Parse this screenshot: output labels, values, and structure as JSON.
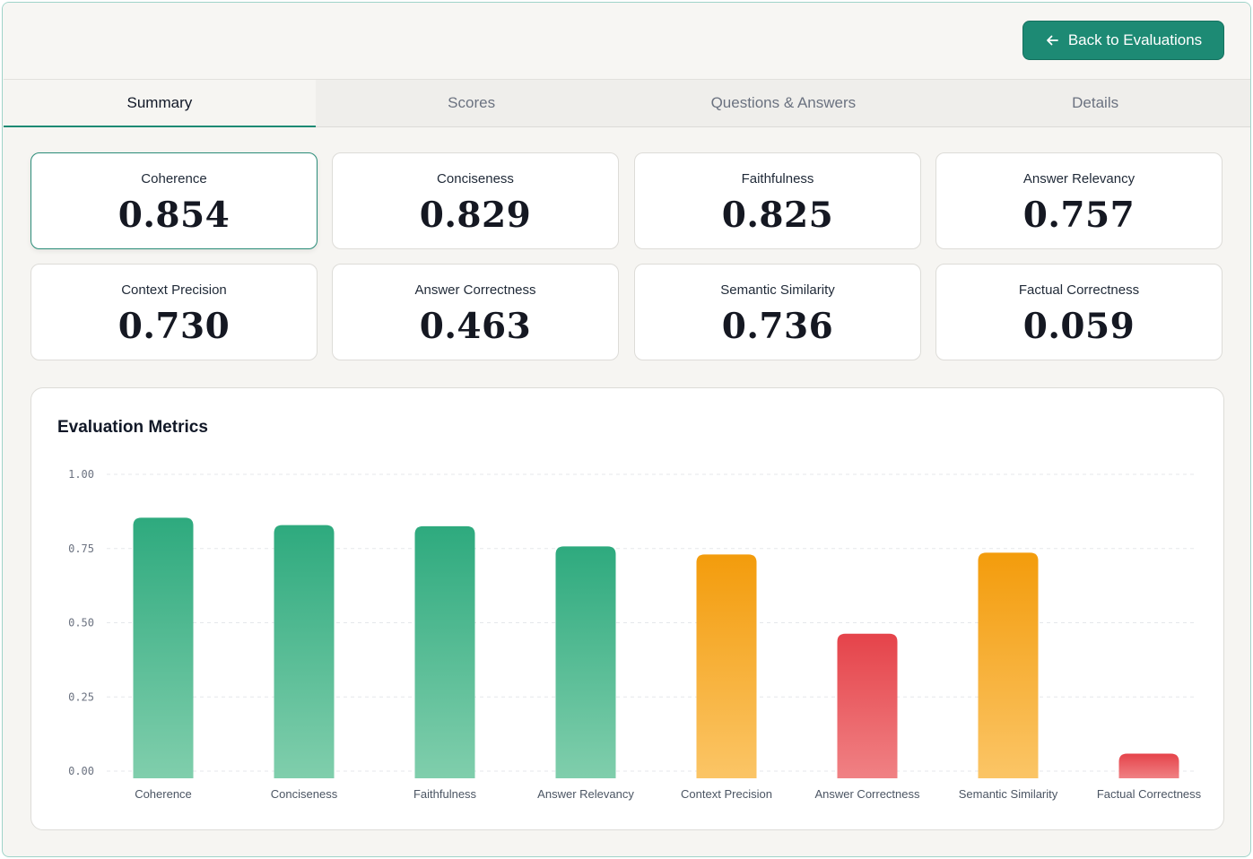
{
  "header": {
    "back_label": "Back to Evaluations",
    "back_icon": "arrow-left-icon"
  },
  "tabs": [
    {
      "label": "Summary",
      "active": true
    },
    {
      "label": "Scores",
      "active": false
    },
    {
      "label": "Questions & Answers",
      "active": false
    },
    {
      "label": "Details",
      "active": false
    }
  ],
  "metrics": [
    {
      "label": "Coherence",
      "value": "0.854"
    },
    {
      "label": "Conciseness",
      "value": "0.829"
    },
    {
      "label": "Faithfulness",
      "value": "0.825"
    },
    {
      "label": "Answer Relevancy",
      "value": "0.757"
    },
    {
      "label": "Context Precision",
      "value": "0.730"
    },
    {
      "label": "Answer Correctness",
      "value": "0.463"
    },
    {
      "label": "Semantic Similarity",
      "value": "0.736"
    },
    {
      "label": "Factual Correctness",
      "value": "0.059"
    }
  ],
  "chart_title": "Evaluation Metrics",
  "colors": {
    "accent": "#1d8a74",
    "good": "#2eaa7e",
    "medium": "#f39c0c",
    "poor": "#e5434a"
  },
  "chart_data": {
    "type": "bar",
    "title": "Evaluation Metrics",
    "categories": [
      "Coherence",
      "Conciseness",
      "Faithfulness",
      "Answer Relevancy",
      "Context Precision",
      "Answer Correctness",
      "Semantic Similarity",
      "Factual Correctness"
    ],
    "values": [
      0.854,
      0.829,
      0.825,
      0.757,
      0.73,
      0.463,
      0.736,
      0.059
    ],
    "bar_colors": [
      "good",
      "good",
      "good",
      "good",
      "medium",
      "poor",
      "medium",
      "poor"
    ],
    "ylim": [
      0,
      1
    ],
    "yticks": [
      "1.00",
      "0.75",
      "0.50",
      "0.25",
      "0.00"
    ],
    "ytick_values": [
      1,
      0.75,
      0.5,
      0.25,
      0
    ],
    "grid": true,
    "xlabel": "",
    "ylabel": ""
  }
}
